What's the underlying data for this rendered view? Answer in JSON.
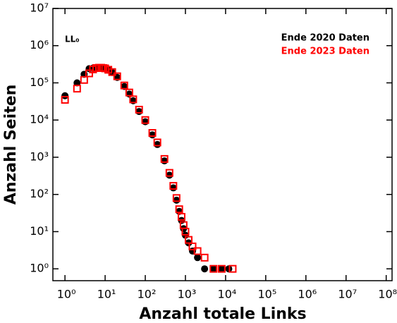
{
  "chart_data": {
    "type": "scatter",
    "xlabel": "Anzahl totale Links",
    "ylabel": "Anzahl Seiten",
    "annotation": "LL₀",
    "xscale": "log",
    "yscale": "log",
    "xlim": [
      0.5,
      140000000
    ],
    "ylim": [
      0.48,
      10000000
    ],
    "xticks": [
      {
        "value": 1,
        "label": "10⁰"
      },
      {
        "value": 10,
        "label": "10¹"
      },
      {
        "value": 100,
        "label": "10²"
      },
      {
        "value": 1000,
        "label": "10³"
      },
      {
        "value": 10000,
        "label": "10⁴"
      },
      {
        "value": 100000,
        "label": "10⁵"
      },
      {
        "value": 1000000,
        "label": "10⁶"
      },
      {
        "value": 10000000,
        "label": "10⁷"
      },
      {
        "value": 100000000,
        "label": "10⁸"
      }
    ],
    "yticks": [
      {
        "value": 1,
        "label": "10⁰"
      },
      {
        "value": 10,
        "label": "10¹"
      },
      {
        "value": 100,
        "label": "10²"
      },
      {
        "value": 1000,
        "label": "10³"
      },
      {
        "value": 10000,
        "label": "10⁴"
      },
      {
        "value": 100000,
        "label": "10⁵"
      },
      {
        "value": 1000000,
        "label": "10⁶"
      },
      {
        "value": 10000000,
        "label": "10⁷"
      }
    ],
    "legend": "upper right",
    "series": [
      {
        "name": "Ende 2020 Daten",
        "color": "#000000",
        "marker": "circle",
        "x": [
          1,
          2,
          3,
          4,
          5,
          6,
          7,
          8,
          9,
          10,
          12,
          15,
          20,
          30,
          40,
          50,
          70,
          100,
          150,
          200,
          300,
          400,
          500,
          600,
          700,
          800,
          900,
          1000,
          1200,
          1500,
          2000,
          3000,
          5000,
          8000,
          12000
        ],
        "values": [
          45000,
          100000,
          170000,
          240000,
          250000,
          255000,
          255000,
          250000,
          245000,
          240000,
          220000,
          190000,
          140000,
          80000,
          50000,
          33000,
          17000,
          9000,
          4000,
          2200,
          800,
          330,
          150,
          70,
          35,
          20,
          12,
          8,
          5,
          3,
          2,
          1,
          1,
          1,
          1
        ]
      },
      {
        "name": "Ende 2023 Daten",
        "color": "#ff0000",
        "marker": "square",
        "x": [
          1,
          2,
          3,
          4,
          5,
          6,
          7,
          8,
          9,
          10,
          12,
          15,
          20,
          30,
          40,
          50,
          70,
          100,
          150,
          200,
          300,
          400,
          500,
          600,
          700,
          800,
          900,
          1000,
          1200,
          1500,
          2000,
          3000,
          5000,
          8000,
          15000
        ],
        "values": [
          35000,
          70000,
          120000,
          180000,
          230000,
          250000,
          255000,
          255000,
          250000,
          245000,
          225000,
          195000,
          150000,
          85000,
          55000,
          36000,
          19000,
          10000,
          4500,
          2500,
          900,
          380,
          170,
          80,
          40,
          25,
          15,
          10,
          6,
          4,
          3,
          2,
          1,
          1,
          1
        ]
      }
    ]
  }
}
